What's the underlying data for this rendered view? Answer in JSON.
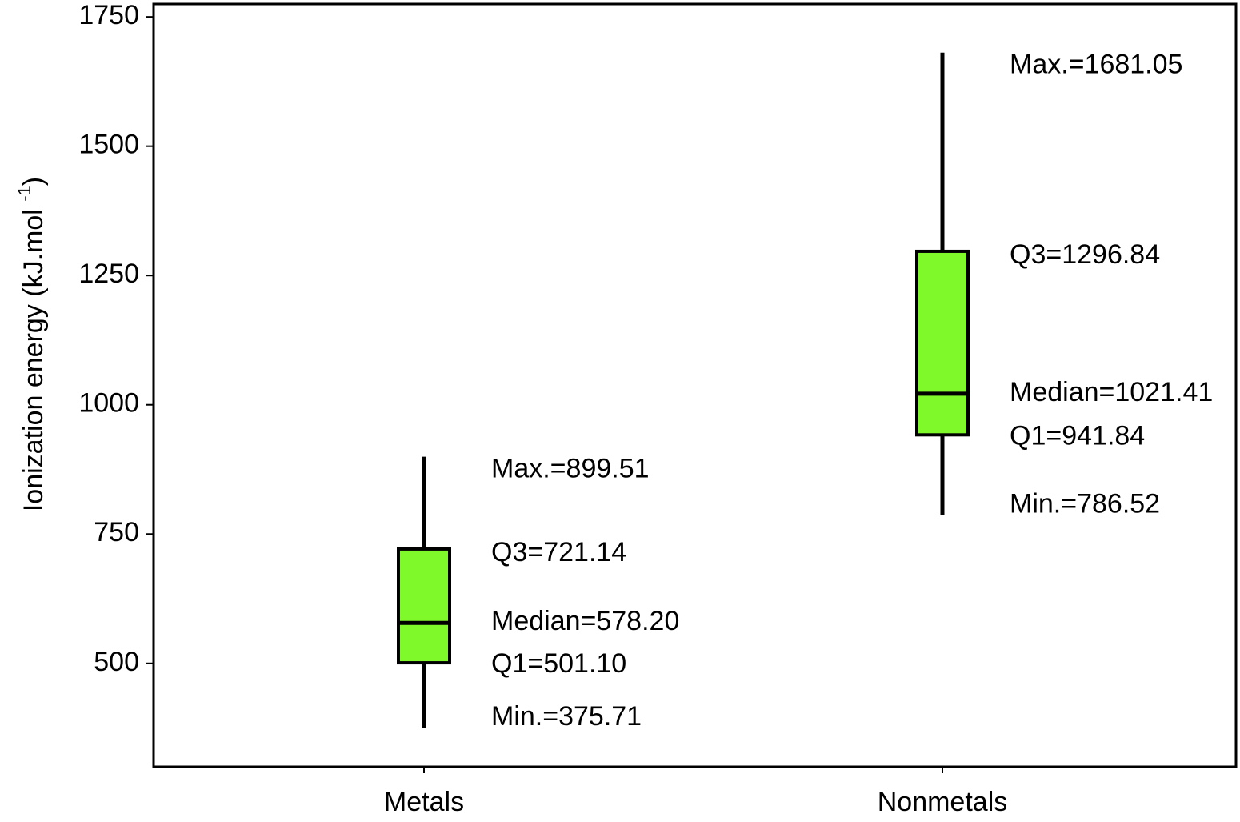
{
  "chart_data": {
    "type": "box",
    "ylabel": [
      "Ionization energy (kJ.mol ",
      "-1",
      ")"
    ],
    "categories": [
      "Metals",
      "Nonmetals"
    ],
    "min": [
      375.71,
      786.52
    ],
    "q1": [
      501.1,
      941.84
    ],
    "median": [
      578.2,
      1021.41
    ],
    "q3": [
      721.14,
      1296.84
    ],
    "max": [
      899.51,
      1681.05
    ],
    "value_labels": {
      "min": [
        "Min.=375.71",
        "Min.=786.52"
      ],
      "q1": [
        "Q1=501.10",
        "Q1=941.84"
      ],
      "median": [
        "Median=578.20",
        "Median=1021.41"
      ],
      "q3": [
        "Q3=721.14",
        "Q3=1296.84"
      ],
      "max": [
        "Max.=899.51",
        "Max.=1681.05"
      ]
    },
    "color": "#80f92b",
    "ylim": [
      300,
      1775
    ],
    "yticks": [
      500,
      750,
      1000,
      1250,
      1500,
      1750
    ]
  }
}
